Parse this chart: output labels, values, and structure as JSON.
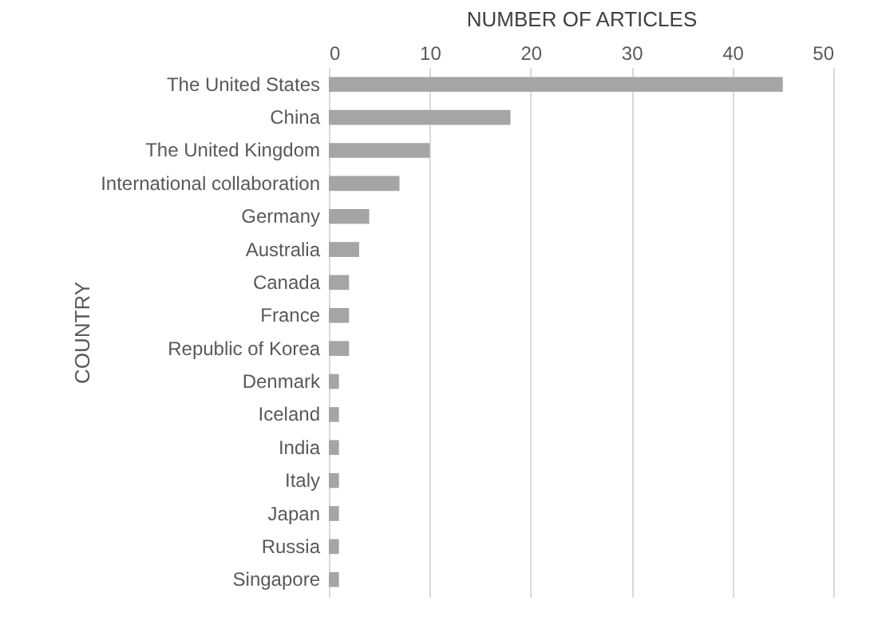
{
  "chart_data": {
    "type": "bar",
    "orientation": "horizontal",
    "xlabel": "NUMBER OF ARTICLES",
    "ylabel": "COUNTRY",
    "categories": [
      "The United States",
      "China",
      "The United Kingdom",
      "International collaboration",
      "Germany",
      "Australia",
      "Canada",
      "France",
      "Republic of Korea",
      "Denmark",
      "Iceland",
      "India",
      "Italy",
      "Japan",
      "Russia",
      "Singapore"
    ],
    "values": [
      45,
      18,
      10,
      7,
      4,
      3,
      2,
      2,
      2,
      1,
      1,
      1,
      1,
      1,
      1,
      1
    ],
    "color": "#a5a5a5",
    "xlim": [
      0,
      50
    ],
    "xticks": [
      0,
      10,
      20,
      30,
      40,
      50
    ],
    "grid": "x"
  }
}
